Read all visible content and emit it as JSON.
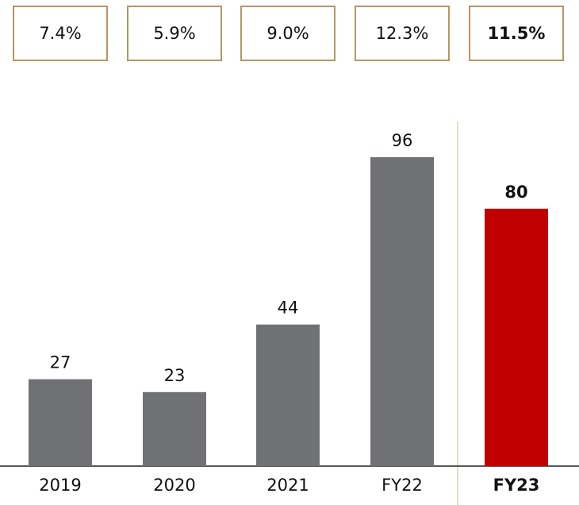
{
  "chart_data": {
    "type": "bar",
    "annotations": [
      "7.4%",
      "5.9%",
      "9.0%",
      "12.3%",
      "11.5%"
    ],
    "categories": [
      "2019",
      "2020",
      "2021",
      "FY22",
      "FY23"
    ],
    "values": [
      27,
      23,
      44,
      96,
      80
    ],
    "colors": [
      "#707174",
      "#707174",
      "#707174",
      "#707174",
      "#c00000"
    ],
    "highlight_index": 4
  }
}
